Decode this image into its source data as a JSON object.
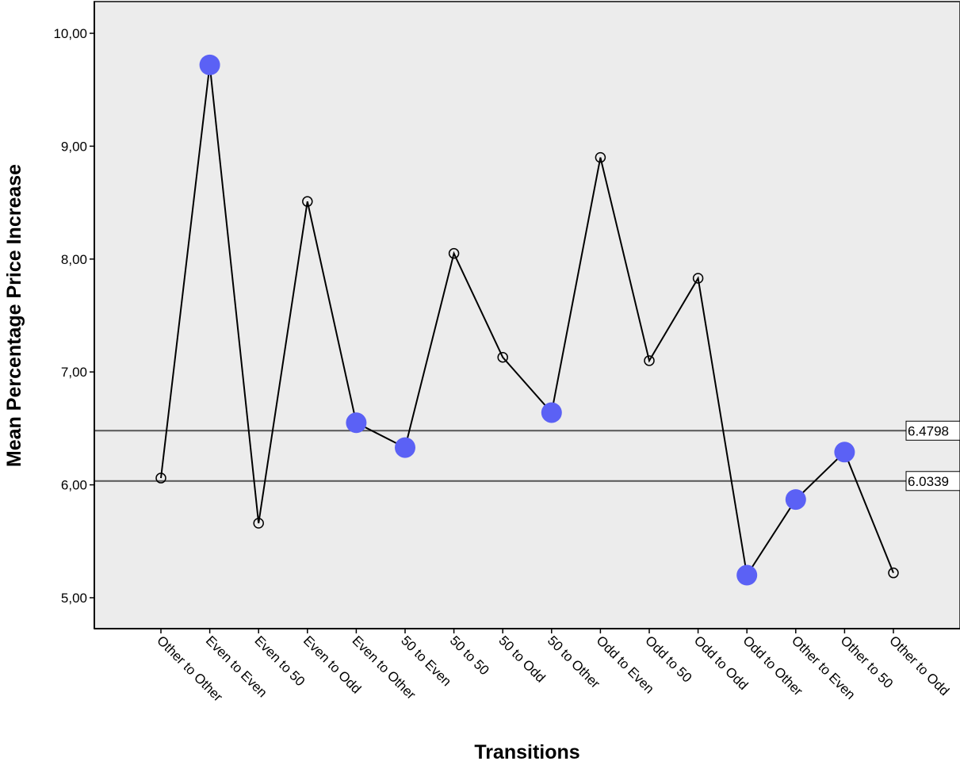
{
  "chart_data": {
    "type": "line",
    "xlabel": "Transitions",
    "ylabel": "Mean Percentage Price Increase",
    "ylim": [
      4.75,
      10.3
    ],
    "yticks": [
      "5,00",
      "6,00",
      "7,00",
      "8,00",
      "9,00",
      "10,00"
    ],
    "ytick_values": [
      5,
      6,
      7,
      8,
      9,
      10
    ],
    "grid": false,
    "categories": [
      "Other to Other",
      "Even to Even",
      "Even to 50",
      "Even to Odd",
      "Even to Other",
      "50 to Even",
      "50 to 50",
      "50 to Odd",
      "50 to Other",
      "Odd to Even",
      "Odd to 50",
      "Odd to Odd",
      "Odd to Other",
      "Other to Even",
      "Other to 50",
      "Other to Odd"
    ],
    "values": [
      6.06,
      9.72,
      5.66,
      8.51,
      6.55,
      6.33,
      8.05,
      7.13,
      6.64,
      8.9,
      7.1,
      7.83,
      5.2,
      5.87,
      6.29,
      5.22
    ],
    "highlighted": [
      false,
      true,
      false,
      false,
      true,
      true,
      false,
      false,
      true,
      false,
      false,
      false,
      true,
      true,
      true,
      false
    ],
    "reference_lines": [
      {
        "value": 6.4798,
        "label": "6.4798"
      },
      {
        "value": 6.0339,
        "label": "6.0339"
      }
    ],
    "colors": {
      "plot_background": "#ececec",
      "line": "#000000",
      "highlight_marker": "#5b61f5",
      "reference_line": "#555555"
    }
  }
}
